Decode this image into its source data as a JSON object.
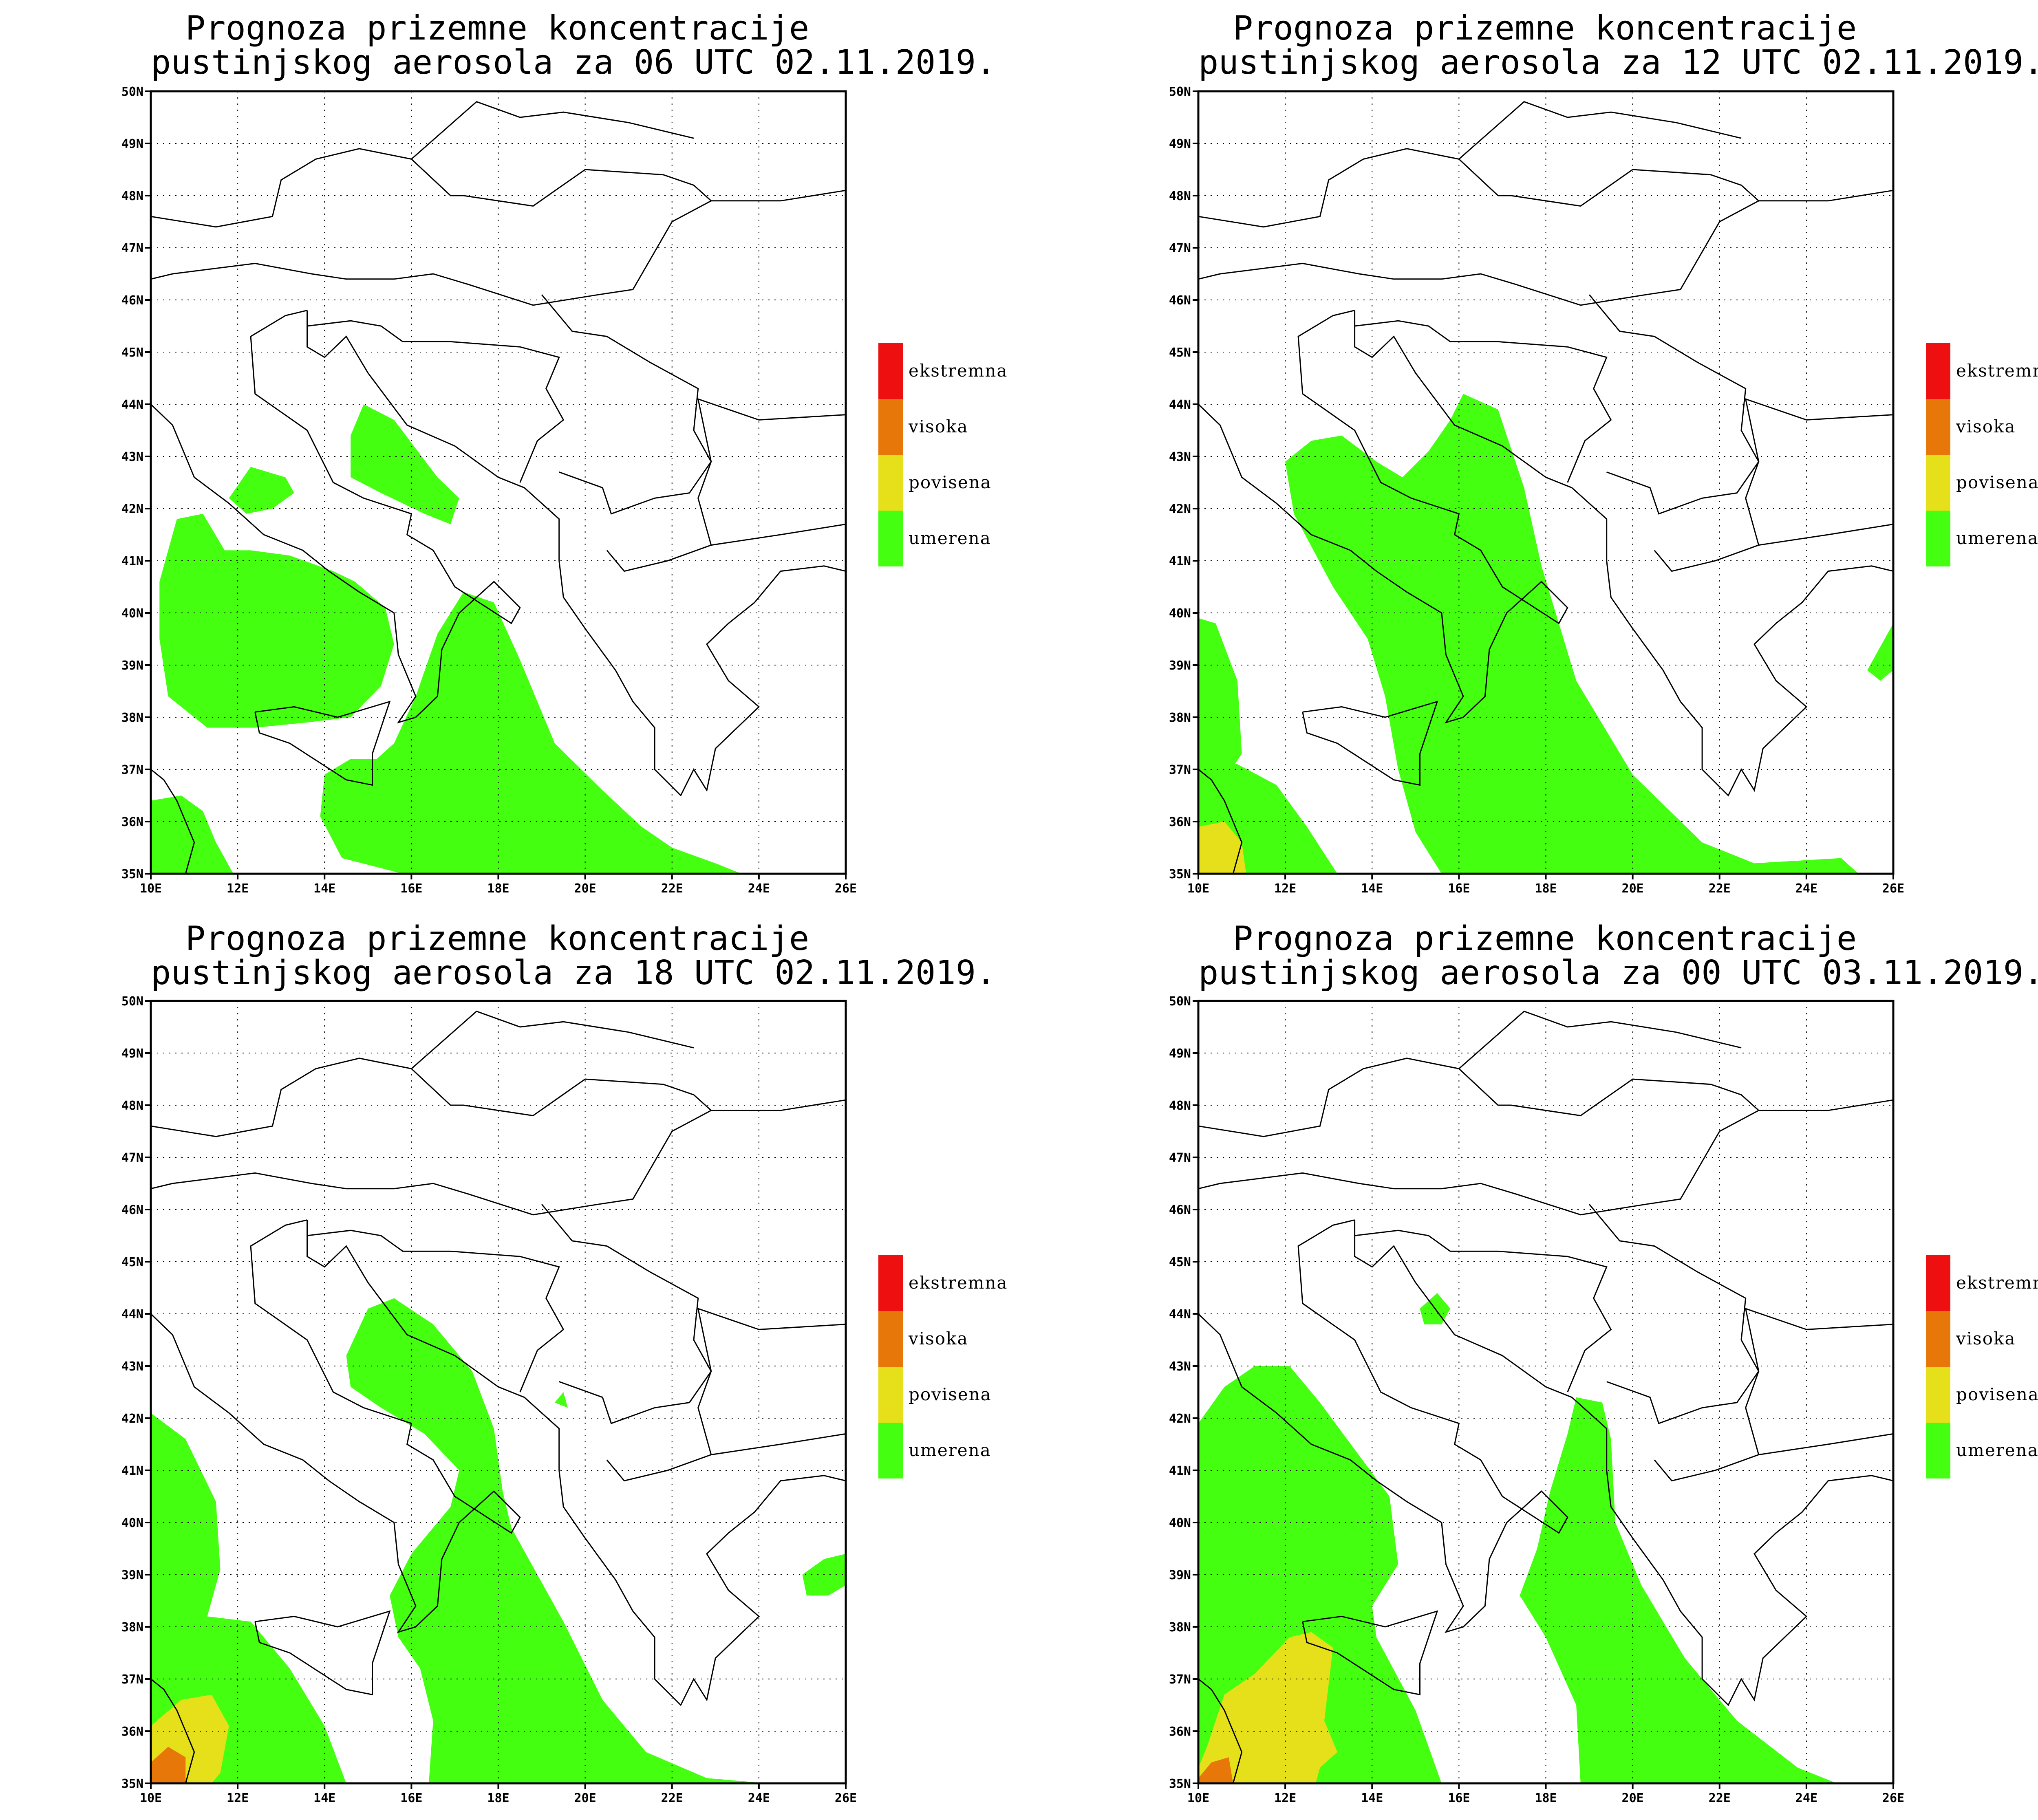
{
  "legend": {
    "items": [
      {
        "label": "ekstremna",
        "color": "#ee1010"
      },
      {
        "label": "visoka",
        "color": "#e8770a"
      },
      {
        "label": "povisena",
        "color": "#e6e01a"
      },
      {
        "label": "umerena",
        "color": "#44ff10"
      }
    ]
  },
  "axes": {
    "lon_labels": [
      "10E",
      "12E",
      "14E",
      "16E",
      "18E",
      "20E",
      "22E",
      "24E",
      "26E"
    ],
    "lat_labels": [
      "35N",
      "36N",
      "37N",
      "38N",
      "39N",
      "40N",
      "41N",
      "42N",
      "43N",
      "44N",
      "45N",
      "46N",
      "47N",
      "48N",
      "49N",
      "50N"
    ],
    "lon_range": [
      10,
      26
    ],
    "lat_range": [
      35,
      50
    ]
  },
  "panels": [
    {
      "title1": "Prognoza prizemne koncentracije",
      "title2": "pustinjskog aerosola za 06 UTC 02.11.2019."
    },
    {
      "title1": "Prognoza prizemne koncentracije",
      "title2": "pustinjskog aerosola za 12 UTC 02.11.2019."
    },
    {
      "title1": "Prognoza prizemne koncentracije",
      "title2": "pustinjskog aerosola za 18 UTC 02.11.2019."
    },
    {
      "title1": "Prognoza prizemne koncentracije",
      "title2": "pustinjskog aerosola za 00 UTC 03.11.2019."
    }
  ]
}
